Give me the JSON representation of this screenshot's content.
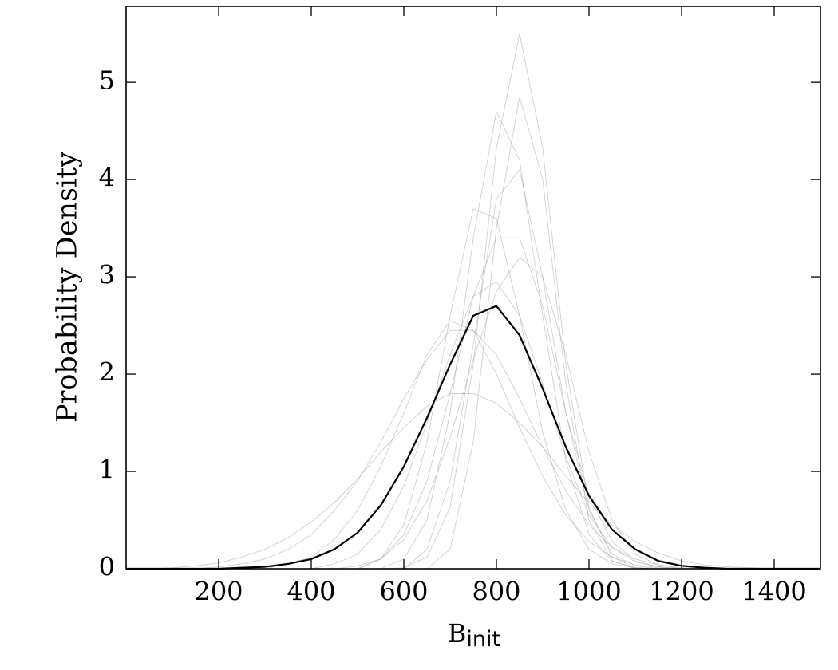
{
  "chart_data": {
    "type": "line",
    "xlabel": "B",
    "xlabel_sub": "init",
    "ylabel": "Probability Density",
    "xlim": [
      0,
      1500
    ],
    "ylim": [
      0,
      5.78
    ],
    "xticks": [
      200,
      400,
      600,
      800,
      1000,
      1200,
      1400
    ],
    "yticks": [
      0,
      1,
      2,
      3,
      4,
      5
    ],
    "grid": false,
    "x": [
      0,
      50,
      100,
      150,
      200,
      250,
      300,
      350,
      400,
      450,
      500,
      550,
      600,
      650,
      700,
      750,
      800,
      850,
      900,
      950,
      1000,
      1050,
      1100,
      1150,
      1200,
      1250,
      1300,
      1350,
      1400,
      1450,
      1500
    ],
    "series": [
      {
        "color": "#8c8c8c",
        "linewidth": 0.8,
        "values": [
          0,
          0,
          0,
          0,
          0,
          0,
          0,
          0,
          0,
          0,
          0,
          0,
          0.01,
          0.12,
          0.63,
          2.1,
          4.32,
          5.5,
          4.32,
          2.1,
          0.63,
          0.12,
          0.01,
          0,
          0,
          0,
          0,
          0,
          0,
          0,
          0
        ]
      },
      {
        "color": "#8c8c8c",
        "linewidth": 0.8,
        "values": [
          0,
          0,
          0,
          0,
          0,
          0,
          0,
          0,
          0,
          0,
          0,
          0,
          0.1,
          0.5,
          1.6,
          3.4,
          4.7,
          4.2,
          2.6,
          1.1,
          0.35,
          0.08,
          0.01,
          0,
          0,
          0,
          0,
          0,
          0,
          0,
          0
        ]
      },
      {
        "color": "#8c8c8c",
        "linewidth": 0.8,
        "values": [
          0,
          0,
          0,
          0,
          0,
          0,
          0,
          0,
          0,
          0,
          0,
          0,
          0,
          0.2,
          0.9,
          2.3,
          3.8,
          4.1,
          3.0,
          1.6,
          0.6,
          0.15,
          0.03,
          0,
          0,
          0,
          0,
          0,
          0,
          0,
          0
        ]
      },
      {
        "color": "#8c8c8c",
        "linewidth": 0.8,
        "values": [
          0,
          0,
          0,
          0,
          0,
          0,
          0,
          0,
          0,
          0,
          0,
          0.1,
          0.35,
          0.9,
          1.8,
          2.8,
          3.4,
          3.4,
          2.7,
          1.6,
          0.75,
          0.28,
          0.08,
          0.02,
          0,
          0,
          0,
          0,
          0,
          0,
          0
        ]
      },
      {
        "color": "#8c8c8c",
        "linewidth": 0.8,
        "values": [
          0,
          0,
          0,
          0,
          0,
          0,
          0,
          0,
          0,
          0.05,
          0.15,
          0.4,
          0.85,
          1.5,
          2.2,
          2.8,
          2.95,
          2.6,
          1.9,
          1.15,
          0.55,
          0.22,
          0.07,
          0.02,
          0,
          0,
          0,
          0,
          0,
          0,
          0
        ]
      },
      {
        "color": "#8c8c8c",
        "linewidth": 0.8,
        "values": [
          0,
          0,
          0,
          0,
          0.02,
          0.05,
          0.1,
          0.2,
          0.35,
          0.6,
          0.9,
          1.3,
          1.75,
          2.15,
          2.45,
          2.45,
          2.2,
          1.75,
          1.25,
          0.8,
          0.45,
          0.22,
          0.1,
          0.04,
          0.01,
          0,
          0,
          0,
          0,
          0,
          0
        ]
      },
      {
        "color": "#8c8c8c",
        "linewidth": 0.8,
        "values": [
          0,
          0,
          0.01,
          0.03,
          0.06,
          0.12,
          0.2,
          0.32,
          0.48,
          0.68,
          0.92,
          1.2,
          1.45,
          1.67,
          1.8,
          1.8,
          1.7,
          1.5,
          1.25,
          0.95,
          0.68,
          0.45,
          0.28,
          0.16,
          0.08,
          0.04,
          0.02,
          0.01,
          0,
          0,
          0
        ]
      },
      {
        "color": "#8c8c8c",
        "linewidth": 0.8,
        "values": [
          0,
          0,
          0,
          0,
          0,
          0,
          0,
          0,
          0,
          0,
          0,
          0.1,
          0.45,
          1.3,
          2.6,
          3.7,
          3.6,
          2.6,
          1.4,
          0.6,
          0.2,
          0.05,
          0.01,
          0,
          0,
          0,
          0,
          0,
          0,
          0,
          0
        ]
      },
      {
        "color": "#8c8c8c",
        "linewidth": 0.8,
        "values": [
          0,
          0,
          0,
          0,
          0,
          0,
          0,
          0.05,
          0.12,
          0.3,
          0.6,
          1.05,
          1.6,
          2.2,
          2.55,
          2.45,
          2.0,
          1.45,
          0.95,
          0.55,
          0.28,
          0.12,
          0.04,
          0.01,
          0,
          0,
          0,
          0,
          0,
          0,
          0
        ]
      },
      {
        "color": "#8c8c8c",
        "linewidth": 0.8,
        "values": [
          0,
          0,
          0,
          0,
          0,
          0,
          0,
          0,
          0,
          0,
          0.03,
          0.1,
          0.3,
          0.7,
          1.35,
          2.15,
          2.85,
          3.2,
          3.0,
          2.2,
          1.2,
          0.5,
          0.15,
          0.04,
          0,
          0,
          0,
          0,
          0,
          0,
          0
        ]
      },
      {
        "color": "#8c8c8c",
        "linewidth": 0.8,
        "values": [
          0,
          0,
          0,
          0,
          0,
          0,
          0,
          0,
          0,
          0,
          0,
          0,
          0,
          0,
          0.2,
          1.3,
          3.5,
          4.85,
          4.0,
          1.9,
          0.5,
          0.08,
          0,
          0,
          0,
          0,
          0,
          0,
          0,
          0,
          0
        ]
      },
      {
        "color": "#000000",
        "linewidth": 2.2,
        "values": [
          0,
          0,
          0,
          0,
          0,
          0.01,
          0.02,
          0.05,
          0.1,
          0.2,
          0.37,
          0.65,
          1.05,
          1.55,
          2.1,
          2.6,
          2.7,
          2.4,
          1.85,
          1.25,
          0.75,
          0.4,
          0.2,
          0.08,
          0.03,
          0.01,
          0,
          0,
          0,
          0,
          0
        ]
      }
    ]
  }
}
